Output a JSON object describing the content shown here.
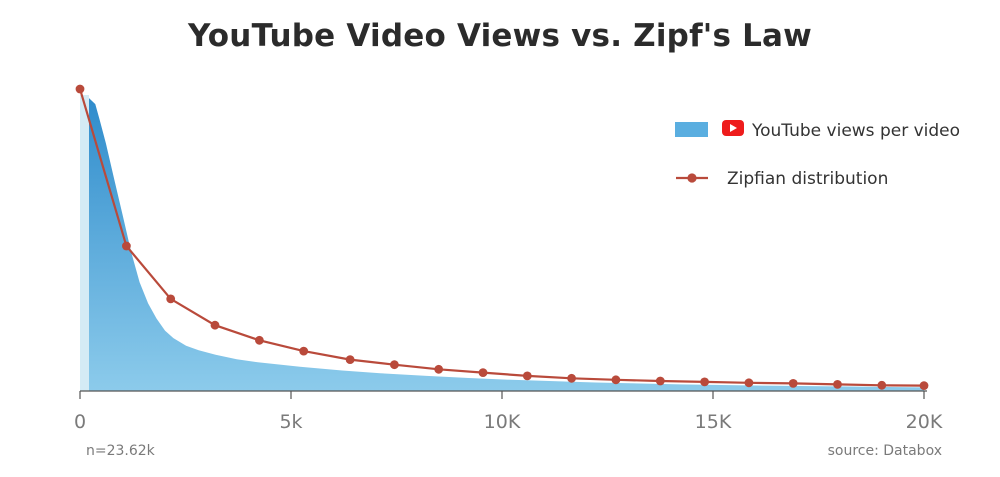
{
  "chart_data": {
    "type": "area",
    "title": "YouTube Video Views vs. Zipf's Law",
    "xlabel": "",
    "ylabel": "",
    "xlim": [
      0,
      20000
    ],
    "ylim": [
      0,
      1
    ],
    "x_ticks": [
      0,
      5000,
      10000,
      15000,
      20000
    ],
    "x_tick_labels": [
      "0",
      "5k",
      "10K",
      "15K",
      "20K"
    ],
    "grid": false,
    "legend_position": "top-right",
    "series": [
      {
        "name": "YouTube views per video",
        "type": "area",
        "color": "#5aaee0",
        "x": [
          0,
          150,
          250,
          400,
          600,
          800,
          1000,
          1200,
          1400,
          1600,
          1800,
          2000,
          2300,
          2600,
          3000,
          3500,
          4000,
          5000,
          6000,
          7000,
          8000,
          9000,
          10000,
          12000,
          14000,
          16000,
          18000,
          20000
        ],
        "values": [
          0.97,
          0.95,
          0.9,
          0.82,
          0.7,
          0.58,
          0.46,
          0.36,
          0.29,
          0.24,
          0.2,
          0.175,
          0.15,
          0.135,
          0.12,
          0.105,
          0.095,
          0.08,
          0.068,
          0.058,
          0.05,
          0.043,
          0.037,
          0.028,
          0.022,
          0.018,
          0.015,
          0.012
        ]
      },
      {
        "name": "Zipfian distribution",
        "type": "line",
        "color": "#b94a3b",
        "x": [
          0,
          1100,
          2150,
          3200,
          4250,
          5300,
          6400,
          7450,
          8500,
          9550,
          10600,
          11650,
          12700,
          13750,
          14800,
          15850,
          16900,
          17950,
          19000,
          20000
        ],
        "values": [
          1.0,
          0.48,
          0.305,
          0.218,
          0.168,
          0.132,
          0.104,
          0.087,
          0.072,
          0.061,
          0.05,
          0.042,
          0.037,
          0.033,
          0.03,
          0.027,
          0.025,
          0.022,
          0.019,
          0.018
        ]
      }
    ],
    "annotations": {
      "sample_size": "n=23.62k",
      "source": "source: Databox"
    }
  },
  "colors": {
    "area_top": "#2f8ccc",
    "area_bottom": "#8ccbeb",
    "zipf": "#b94a3b",
    "youtube_red": "#ee1c1c",
    "axis": "#555555"
  }
}
